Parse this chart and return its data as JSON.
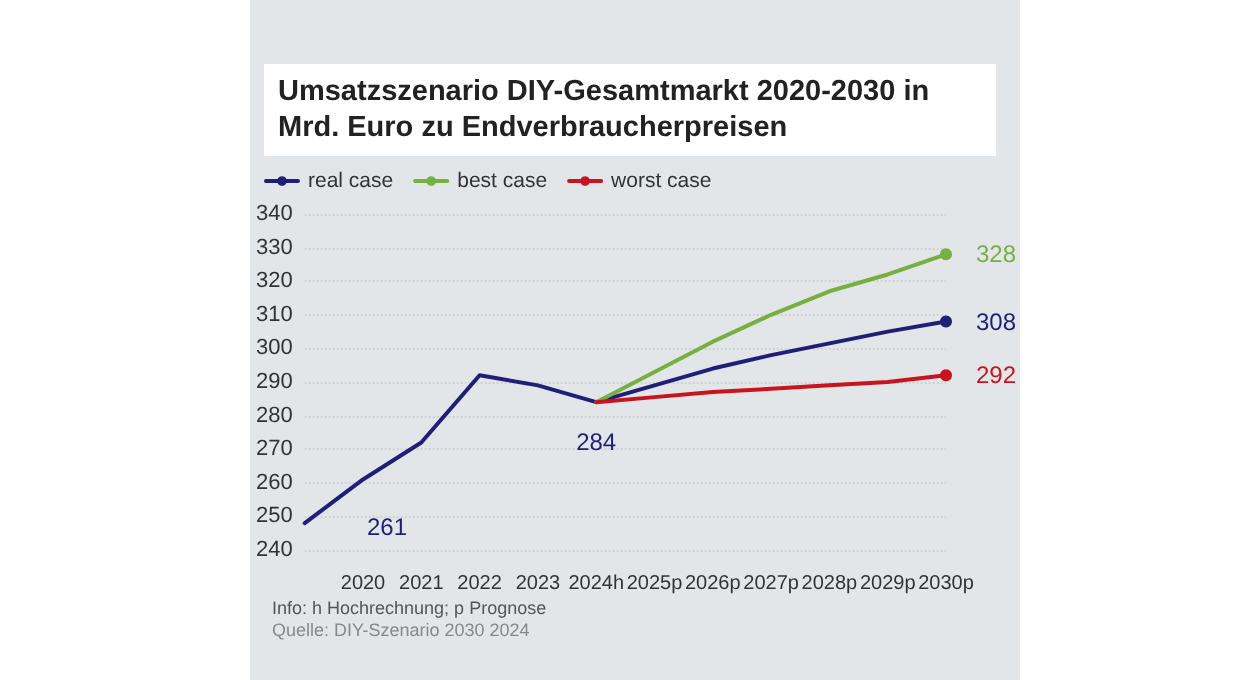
{
  "chart_data": {
    "type": "line",
    "title": "Umsatzszenario DIY-Gesamtmarkt 2020-2030 in Mrd. Euro zu Endverbraucherpreisen",
    "categories": [
      null,
      "2020",
      "2021",
      "2022",
      "2023",
      "2024h",
      "2025p",
      "2026p",
      "2027p",
      "2028p",
      "2029p",
      "2030p"
    ],
    "series": [
      {
        "name": "real case",
        "color": "#1f1f78",
        "values": [
          248,
          261,
          272,
          292,
          289,
          284,
          289,
          294,
          298,
          301.5,
          305,
          308
        ],
        "value_labels": [
          null,
          "261",
          null,
          null,
          null,
          "284",
          null,
          null,
          null,
          null,
          null,
          "308"
        ]
      },
      {
        "name": "best case",
        "color": "#76b041",
        "values": [
          null,
          null,
          null,
          null,
          null,
          284,
          293,
          302,
          310,
          317,
          322,
          328
        ],
        "value_labels": [
          null,
          null,
          null,
          null,
          null,
          null,
          null,
          null,
          null,
          null,
          null,
          "328"
        ]
      },
      {
        "name": "worst case",
        "color": "#c8141e",
        "values": [
          null,
          null,
          null,
          null,
          null,
          284,
          285.5,
          287,
          288,
          289,
          290,
          292
        ],
        "value_labels": [
          null,
          null,
          null,
          null,
          null,
          null,
          null,
          null,
          null,
          null,
          null,
          "292"
        ]
      }
    ],
    "ylim": [
      240,
      340
    ],
    "yticks": [
      240,
      250,
      260,
      270,
      280,
      290,
      300,
      310,
      320,
      330,
      340
    ],
    "grid": "y",
    "legend": "top left",
    "line_style": "solid",
    "annotations": [
      "Info: h Hochrechnung; p Prognose",
      "Quelle: DIY-Szenario 2030 2024"
    ]
  }
}
